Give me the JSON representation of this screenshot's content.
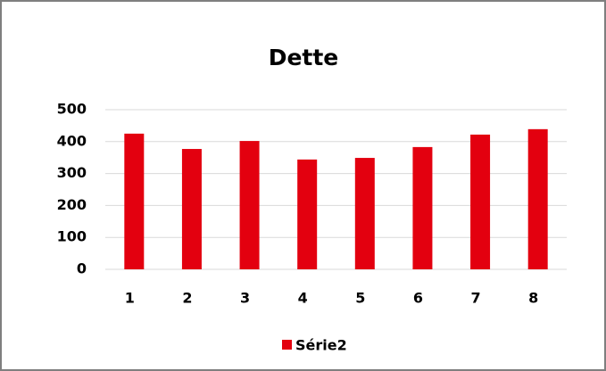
{
  "chart_data": {
    "type": "bar",
    "title": "Dette",
    "categories": [
      "1",
      "2",
      "3",
      "4",
      "5",
      "6",
      "7",
      "8"
    ],
    "series": [
      {
        "name": "Série2",
        "color": "#e3000f",
        "values": [
          425,
          377,
          402,
          344,
          349,
          383,
          422,
          439
        ]
      }
    ],
    "ylim": [
      0,
      500
    ],
    "yticks": [
      0,
      100,
      200,
      300,
      400,
      500
    ],
    "grid": true,
    "legend": "bottom"
  }
}
